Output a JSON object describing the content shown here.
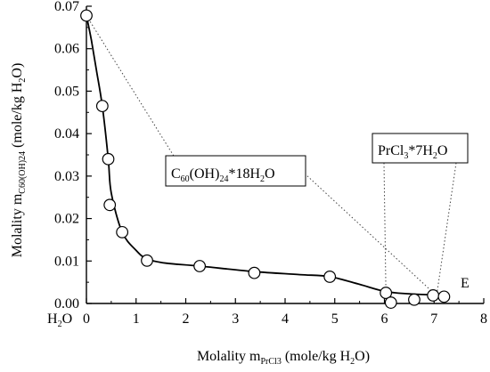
{
  "chart_data": {
    "type": "scatter",
    "x": [
      0.0,
      0.32,
      0.44,
      0.47,
      0.72,
      1.22,
      2.28,
      3.38,
      4.9,
      6.03,
      6.13,
      6.6,
      6.98,
      7.2
    ],
    "y": [
      0.0678,
      0.0465,
      0.034,
      0.0232,
      0.0168,
      0.0101,
      0.0088,
      0.0072,
      0.0063,
      0.0025,
      0.0002,
      0.0009,
      0.0019,
      0.0016
    ],
    "curve": {
      "x": [
        0.0,
        0.1,
        0.2,
        0.32,
        0.44,
        0.5,
        0.72,
        1.0,
        1.22,
        1.6,
        2.28,
        3.38,
        4.3,
        4.9,
        5.5,
        6.03,
        6.6,
        6.98,
        7.2
      ],
      "y": [
        0.0678,
        0.062,
        0.055,
        0.0465,
        0.034,
        0.026,
        0.0168,
        0.0125,
        0.0105,
        0.0095,
        0.0088,
        0.0075,
        0.0068,
        0.0063,
        0.0045,
        0.0028,
        0.0022,
        0.002,
        0.0016
      ]
    },
    "xlim": [
      0,
      8
    ],
    "ylim": [
      0,
      0.07
    ],
    "xticks": [
      "0",
      "1",
      "2",
      "3",
      "4",
      "5",
      "6",
      "7",
      "8"
    ],
    "yticks": [
      "0.00",
      "0.01",
      "0.02",
      "0.03",
      "0.04",
      "0.05",
      "0.06",
      "0.07"
    ],
    "xlabel": {
      "pre": "Molality  m",
      "sub": "PrCl3",
      "post": " (mole/kg H",
      "sub2": "2",
      "post2": "O)"
    },
    "ylabel": {
      "pre": "Molality  m",
      "sub": "C60(OH)24",
      "post": " (mole/kg H",
      "sub2": "2",
      "post2": "O)"
    },
    "h2o_label": {
      "main": "H",
      "sub": "2",
      "tail": "O"
    },
    "point_label": "E",
    "phase_labels": [
      {
        "parts": [
          "C",
          "60",
          "(OH)",
          "24",
          "*18H",
          "2",
          "O"
        ]
      },
      {
        "parts": [
          "PrCl",
          "3",
          "*7H",
          "2",
          "O"
        ]
      }
    ],
    "grid": false
  }
}
